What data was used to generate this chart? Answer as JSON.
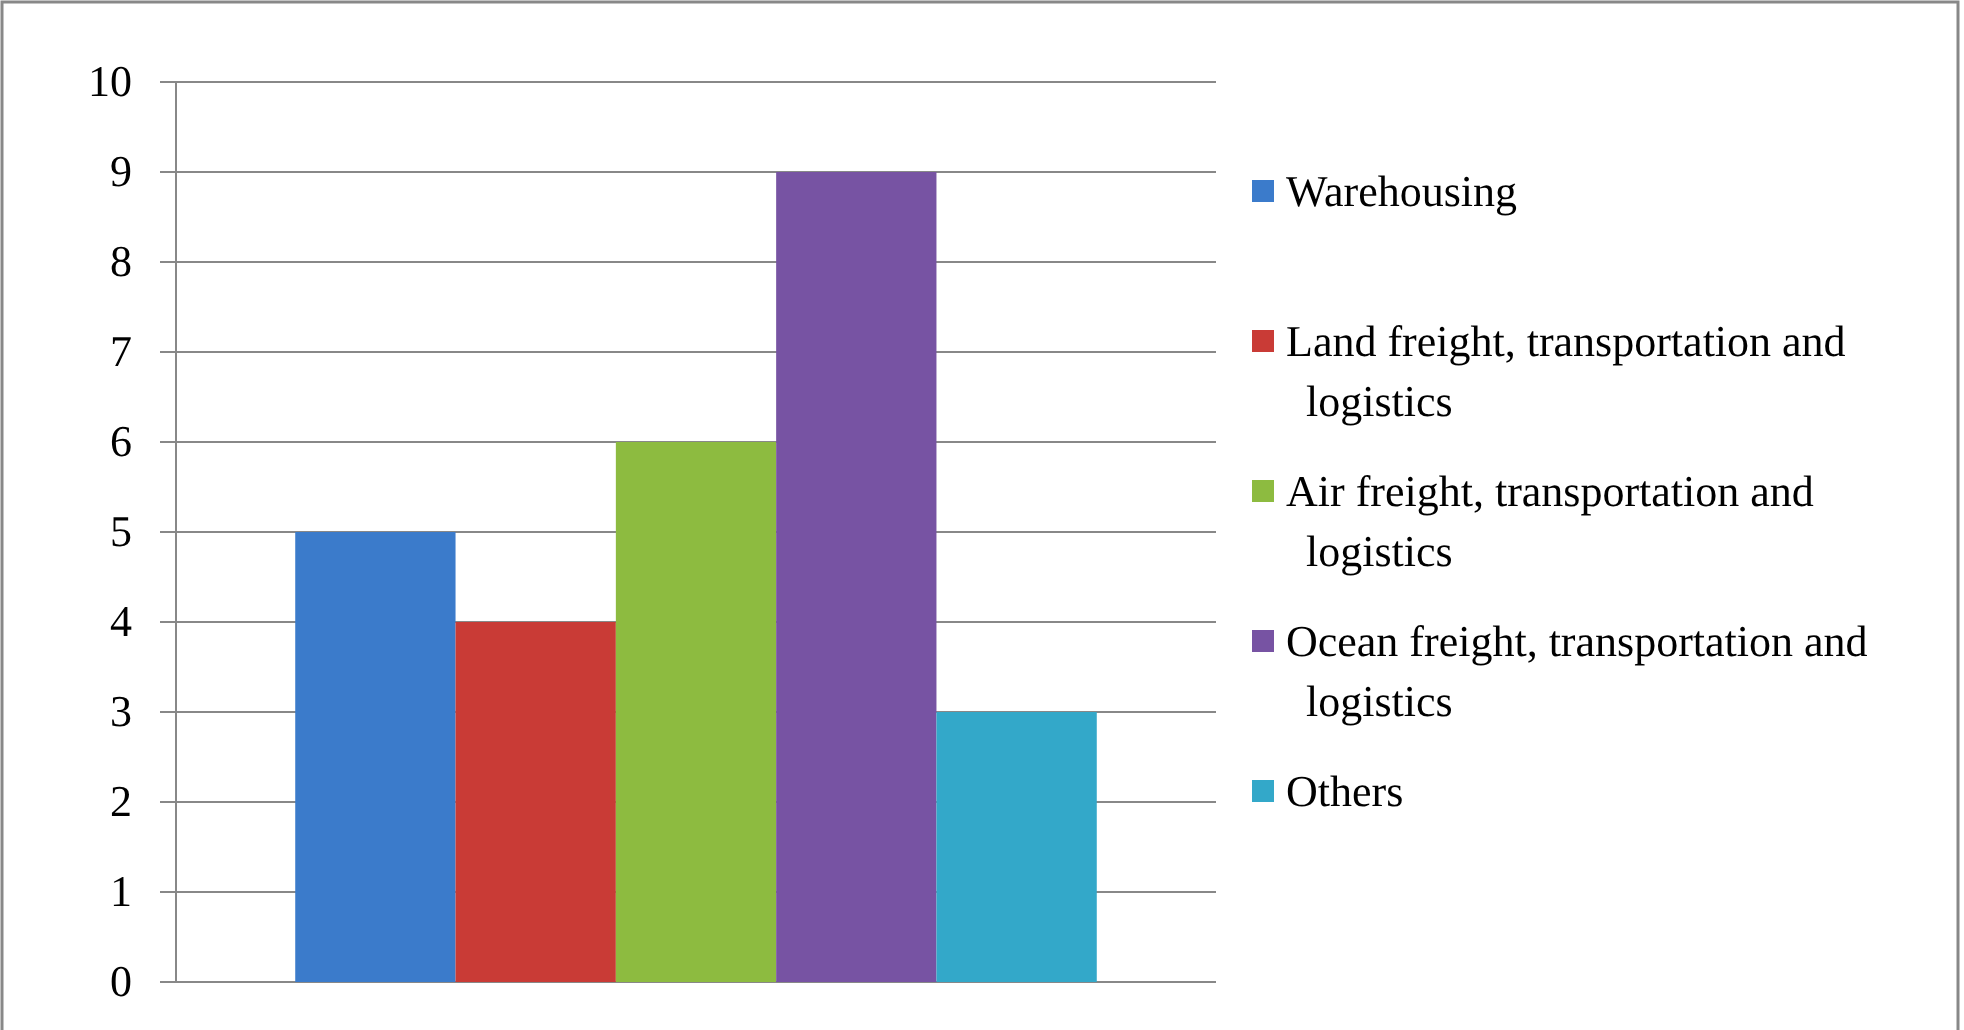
{
  "chart_data": {
    "type": "bar",
    "categories": [
      null
    ],
    "series": [
      {
        "name": "Warehousing",
        "color": "#3b7bcb",
        "values": [
          5
        ]
      },
      {
        "name": "Land freight, transportation and logistics",
        "color": "#c93b36",
        "values": [
          4
        ]
      },
      {
        "name": "Air freight, transportation and logistics",
        "color": "#8dbb40",
        "values": [
          6
        ]
      },
      {
        "name": "Ocean freight, transportation and logistics",
        "color": "#7753a3",
        "values": [
          9
        ]
      },
      {
        "name": "Others",
        "color": "#33a8c9",
        "values": [
          3
        ]
      }
    ],
    "ylim": [
      0,
      10
    ],
    "yticks": [
      0,
      1,
      2,
      3,
      4,
      5,
      6,
      7,
      8,
      9,
      10
    ],
    "grid": "y",
    "legend": "right"
  }
}
